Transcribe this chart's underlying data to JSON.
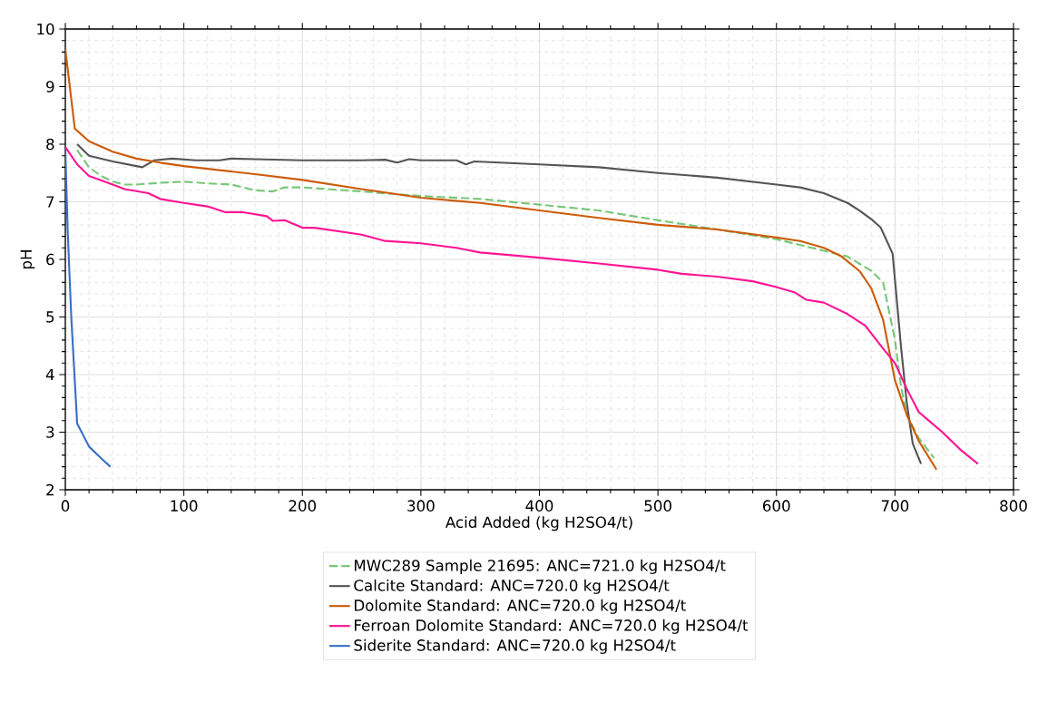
{
  "chart_data": {
    "type": "line",
    "xlabel": "Acid Added (kg H2SO4/t)",
    "ylabel": "pH",
    "xlim": [
      0,
      800
    ],
    "ylim": [
      2,
      10
    ],
    "xticks": [
      0,
      100,
      200,
      300,
      400,
      500,
      600,
      700,
      800
    ],
    "yticks": [
      2,
      3,
      4,
      5,
      6,
      7,
      8,
      9,
      10
    ],
    "grid": true,
    "legend": "bottom",
    "marker": "none",
    "series": [
      {
        "name": "MWC289 Sample 21695: ANC=721.0 kg H2SO4/t",
        "color": "#77c777",
        "line_style": "dashed",
        "x": [
          10,
          20,
          30,
          40,
          50,
          60,
          80,
          100,
          120,
          140,
          160,
          175,
          185,
          200,
          250,
          300,
          350,
          400,
          450,
          500,
          550,
          600,
          640,
          660,
          680,
          690,
          700,
          705,
          710,
          720,
          733
        ],
        "values": [
          7.9,
          7.6,
          7.45,
          7.35,
          7.3,
          7.3,
          7.33,
          7.35,
          7.32,
          7.3,
          7.2,
          7.18,
          7.25,
          7.25,
          7.18,
          7.1,
          7.05,
          6.95,
          6.85,
          6.68,
          6.52,
          6.35,
          6.15,
          6.05,
          5.8,
          5.6,
          4.6,
          3.8,
          3.3,
          2.9,
          2.55
        ]
      },
      {
        "name": "Calcite Standard: ANC=720.0 kg H2SO4/t",
        "color": "#555555",
        "line_style": "solid",
        "x": [
          10,
          20,
          40,
          60,
          65,
          75,
          90,
          110,
          130,
          140,
          160,
          200,
          250,
          270,
          280,
          290,
          300,
          330,
          338,
          345,
          400,
          450,
          500,
          550,
          600,
          620,
          640,
          660,
          670,
          680,
          688,
          698,
          705,
          710,
          715,
          722
        ],
        "values": [
          8.0,
          7.8,
          7.7,
          7.62,
          7.6,
          7.72,
          7.75,
          7.72,
          7.72,
          7.75,
          7.74,
          7.72,
          7.72,
          7.73,
          7.68,
          7.74,
          7.72,
          7.72,
          7.65,
          7.7,
          7.65,
          7.6,
          7.5,
          7.42,
          7.3,
          7.25,
          7.15,
          6.98,
          6.85,
          6.7,
          6.55,
          6.1,
          4.5,
          3.5,
          2.8,
          2.45
        ]
      },
      {
        "name": "Dolomite Standard: ANC=720.0 kg H2SO4/t",
        "color": "#cc5c0c",
        "line_style": "solid",
        "x": [
          0,
          8,
          20,
          40,
          60,
          80,
          100,
          130,
          160,
          200,
          250,
          300,
          350,
          400,
          450,
          500,
          550,
          600,
          620,
          640,
          655,
          670,
          680,
          690,
          700,
          710,
          720,
          735
        ],
        "values": [
          9.65,
          8.27,
          8.05,
          7.87,
          7.75,
          7.68,
          7.62,
          7.55,
          7.48,
          7.38,
          7.22,
          7.07,
          6.98,
          6.85,
          6.72,
          6.6,
          6.52,
          6.38,
          6.32,
          6.2,
          6.05,
          5.8,
          5.5,
          4.95,
          3.9,
          3.3,
          2.85,
          2.35
        ]
      },
      {
        "name": "Ferroan Dolomite Standard: ANC=720.0 kg H2SO4/t",
        "color": "#ff1493",
        "line_style": "solid",
        "x": [
          0,
          10,
          20,
          40,
          50,
          70,
          80,
          100,
          120,
          135,
          150,
          170,
          175,
          185,
          200,
          210,
          250,
          270,
          300,
          330,
          350,
          400,
          450,
          500,
          520,
          550,
          580,
          600,
          615,
          625,
          640,
          660,
          675,
          690,
          700,
          710,
          720,
          740,
          755,
          770
        ],
        "values": [
          7.95,
          7.65,
          7.45,
          7.3,
          7.22,
          7.15,
          7.05,
          6.98,
          6.92,
          6.82,
          6.82,
          6.75,
          6.67,
          6.68,
          6.55,
          6.55,
          6.43,
          6.32,
          6.28,
          6.2,
          6.12,
          6.03,
          5.93,
          5.82,
          5.75,
          5.7,
          5.62,
          5.52,
          5.43,
          5.3,
          5.25,
          5.05,
          4.85,
          4.45,
          4.2,
          3.75,
          3.35,
          3.0,
          2.7,
          2.45
        ]
      },
      {
        "name": "Siderite Standard: ANC=720.0 kg H2SO4/t",
        "color": "#3a6fc4",
        "line_style": "solid",
        "x": [
          0,
          2,
          5,
          10,
          20,
          30,
          38
        ],
        "values": [
          7.9,
          6.5,
          5.0,
          3.15,
          2.75,
          2.55,
          2.4
        ]
      }
    ]
  }
}
